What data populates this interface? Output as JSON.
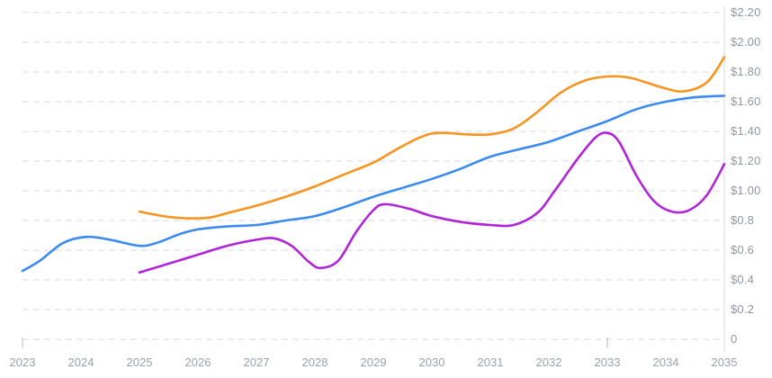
{
  "page": {
    "background_color": "#ffffff"
  },
  "chart_data": {
    "type": "line",
    "title": "",
    "xlabel": "",
    "ylabel": "",
    "legend": "none",
    "grid": "horizontal-dashed",
    "y_axis_side": "right",
    "xlim": [
      2023,
      2035
    ],
    "ylim": [
      0,
      2.2
    ],
    "colors": {
      "gridline": "#e2e5ef",
      "axis_line": "#e3e4ea",
      "tick_mark": "#c5c9d4",
      "x_label_text": "#9aa1ad",
      "y_label_text": "#8f96a4"
    },
    "xticks": [
      {
        "value": 2023,
        "label": "2023"
      },
      {
        "value": 2024,
        "label": "2024"
      },
      {
        "value": 2025,
        "label": "2025"
      },
      {
        "value": 2026,
        "label": "2026"
      },
      {
        "value": 2027,
        "label": "2027"
      },
      {
        "value": 2028,
        "label": "2028"
      },
      {
        "value": 2029,
        "label": "2029"
      },
      {
        "value": 2030,
        "label": "2030"
      },
      {
        "value": 2031,
        "label": "2031"
      },
      {
        "value": 2032,
        "label": "2032"
      },
      {
        "value": 2033,
        "label": "2033"
      },
      {
        "value": 2034,
        "label": "2034"
      },
      {
        "value": 2035,
        "label": "2035"
      }
    ],
    "yticks": [
      {
        "value": 0.0,
        "label": "0"
      },
      {
        "value": 0.2,
        "label": "$0.2"
      },
      {
        "value": 0.4,
        "label": "$0.4"
      },
      {
        "value": 0.6,
        "label": "$0.6"
      },
      {
        "value": 0.8,
        "label": "$0.8"
      },
      {
        "value": 1.0,
        "label": "$1.00"
      },
      {
        "value": 1.2,
        "label": "$1.20"
      },
      {
        "value": 1.4,
        "label": "$1.40"
      },
      {
        "value": 1.6,
        "label": "$1.60"
      },
      {
        "value": 1.8,
        "label": "$1.80"
      },
      {
        "value": 2.0,
        "label": "$2.00"
      },
      {
        "value": 2.2,
        "label": "$2.20"
      }
    ],
    "x_tick_marks_at": [
      2023,
      2033
    ],
    "series": [
      {
        "name": "blue-line",
        "color": "#3a8af0",
        "points": [
          [
            2023.0,
            0.46
          ],
          [
            2023.3,
            0.53
          ],
          [
            2023.7,
            0.65
          ],
          [
            2024.1,
            0.69
          ],
          [
            2024.5,
            0.67
          ],
          [
            2025.0,
            0.63
          ],
          [
            2025.3,
            0.65
          ],
          [
            2025.7,
            0.71
          ],
          [
            2026.0,
            0.74
          ],
          [
            2026.5,
            0.76
          ],
          [
            2027.0,
            0.77
          ],
          [
            2027.5,
            0.8
          ],
          [
            2028.0,
            0.83
          ],
          [
            2028.5,
            0.89
          ],
          [
            2029.0,
            0.96
          ],
          [
            2029.5,
            1.02
          ],
          [
            2030.0,
            1.08
          ],
          [
            2030.5,
            1.15
          ],
          [
            2031.0,
            1.23
          ],
          [
            2031.5,
            1.28
          ],
          [
            2032.0,
            1.33
          ],
          [
            2032.5,
            1.4
          ],
          [
            2033.0,
            1.47
          ],
          [
            2033.5,
            1.55
          ],
          [
            2034.0,
            1.6
          ],
          [
            2034.5,
            1.63
          ],
          [
            2035.0,
            1.64
          ]
        ]
      },
      {
        "name": "orange-line",
        "color": "#f7941f",
        "points": [
          [
            2025.0,
            0.86
          ],
          [
            2025.4,
            0.83
          ],
          [
            2025.8,
            0.815
          ],
          [
            2026.2,
            0.82
          ],
          [
            2026.6,
            0.86
          ],
          [
            2027.0,
            0.9
          ],
          [
            2027.5,
            0.96
          ],
          [
            2028.0,
            1.03
          ],
          [
            2028.5,
            1.11
          ],
          [
            2029.0,
            1.19
          ],
          [
            2029.4,
            1.28
          ],
          [
            2029.8,
            1.36
          ],
          [
            2030.1,
            1.39
          ],
          [
            2030.6,
            1.38
          ],
          [
            2031.0,
            1.38
          ],
          [
            2031.4,
            1.42
          ],
          [
            2031.8,
            1.53
          ],
          [
            2032.2,
            1.66
          ],
          [
            2032.6,
            1.74
          ],
          [
            2033.0,
            1.77
          ],
          [
            2033.4,
            1.76
          ],
          [
            2033.9,
            1.7
          ],
          [
            2034.3,
            1.67
          ],
          [
            2034.7,
            1.73
          ],
          [
            2035.0,
            1.9
          ]
        ]
      },
      {
        "name": "purple-line",
        "color": "#b123d9",
        "points": [
          [
            2025.0,
            0.45
          ],
          [
            2025.5,
            0.51
          ],
          [
            2026.0,
            0.57
          ],
          [
            2026.5,
            0.63
          ],
          [
            2027.0,
            0.67
          ],
          [
            2027.3,
            0.68
          ],
          [
            2027.6,
            0.63
          ],
          [
            2027.9,
            0.52
          ],
          [
            2028.1,
            0.48
          ],
          [
            2028.4,
            0.53
          ],
          [
            2028.7,
            0.72
          ],
          [
            2029.0,
            0.87
          ],
          [
            2029.2,
            0.91
          ],
          [
            2029.6,
            0.88
          ],
          [
            2030.0,
            0.83
          ],
          [
            2030.5,
            0.79
          ],
          [
            2031.0,
            0.77
          ],
          [
            2031.4,
            0.77
          ],
          [
            2031.8,
            0.85
          ],
          [
            2032.1,
            1.0
          ],
          [
            2032.5,
            1.22
          ],
          [
            2032.8,
            1.36
          ],
          [
            2033.0,
            1.39
          ],
          [
            2033.2,
            1.33
          ],
          [
            2033.5,
            1.1
          ],
          [
            2033.8,
            0.93
          ],
          [
            2034.1,
            0.86
          ],
          [
            2034.4,
            0.87
          ],
          [
            2034.7,
            0.97
          ],
          [
            2035.0,
            1.18
          ]
        ]
      }
    ]
  }
}
